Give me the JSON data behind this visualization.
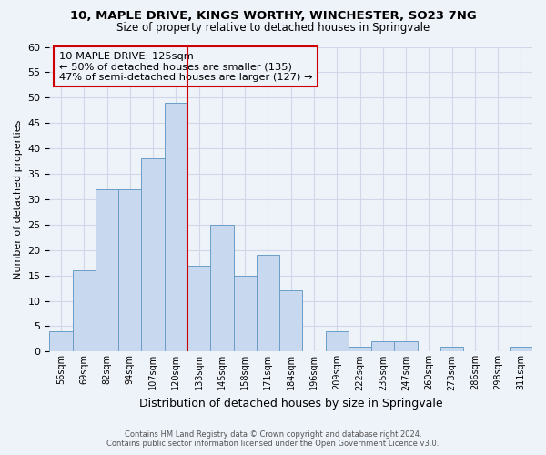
{
  "title1": "10, MAPLE DRIVE, KINGS WORTHY, WINCHESTER, SO23 7NG",
  "title2": "Size of property relative to detached houses in Springvale",
  "xlabel": "Distribution of detached houses by size in Springvale",
  "ylabel": "Number of detached properties",
  "bin_labels": [
    "56sqm",
    "69sqm",
    "82sqm",
    "94sqm",
    "107sqm",
    "120sqm",
    "133sqm",
    "145sqm",
    "158sqm",
    "171sqm",
    "184sqm",
    "196sqm",
    "209sqm",
    "222sqm",
    "235sqm",
    "247sqm",
    "260sqm",
    "273sqm",
    "286sqm",
    "298sqm",
    "311sqm"
  ],
  "bar_values": [
    4,
    16,
    32,
    32,
    38,
    49,
    17,
    25,
    15,
    19,
    12,
    0,
    4,
    1,
    2,
    2,
    0,
    1,
    0,
    0,
    1
  ],
  "bar_color": "#c8d8ee",
  "bar_edge_color": "#6a9ec8",
  "vline_color": "#cc0000",
  "annotation_text1": "10 MAPLE DRIVE: 125sqm",
  "annotation_text2": "← 50% of detached houses are smaller (135)",
  "annotation_text3": "47% of semi-detached houses are larger (127) →",
  "annotation_box_edge": "#cc0000",
  "ylim": [
    0,
    60
  ],
  "yticks": [
    0,
    5,
    10,
    15,
    20,
    25,
    30,
    35,
    40,
    45,
    50,
    55,
    60
  ],
  "footer1": "Contains HM Land Registry data © Crown copyright and database right 2024.",
  "footer2": "Contains public sector information licensed under the Open Government Licence v3.0.",
  "bg_color": "#eef2f9",
  "grid_color": "#d0d8e8",
  "title_fontsize": 9.5,
  "subtitle_fontsize": 8.5
}
